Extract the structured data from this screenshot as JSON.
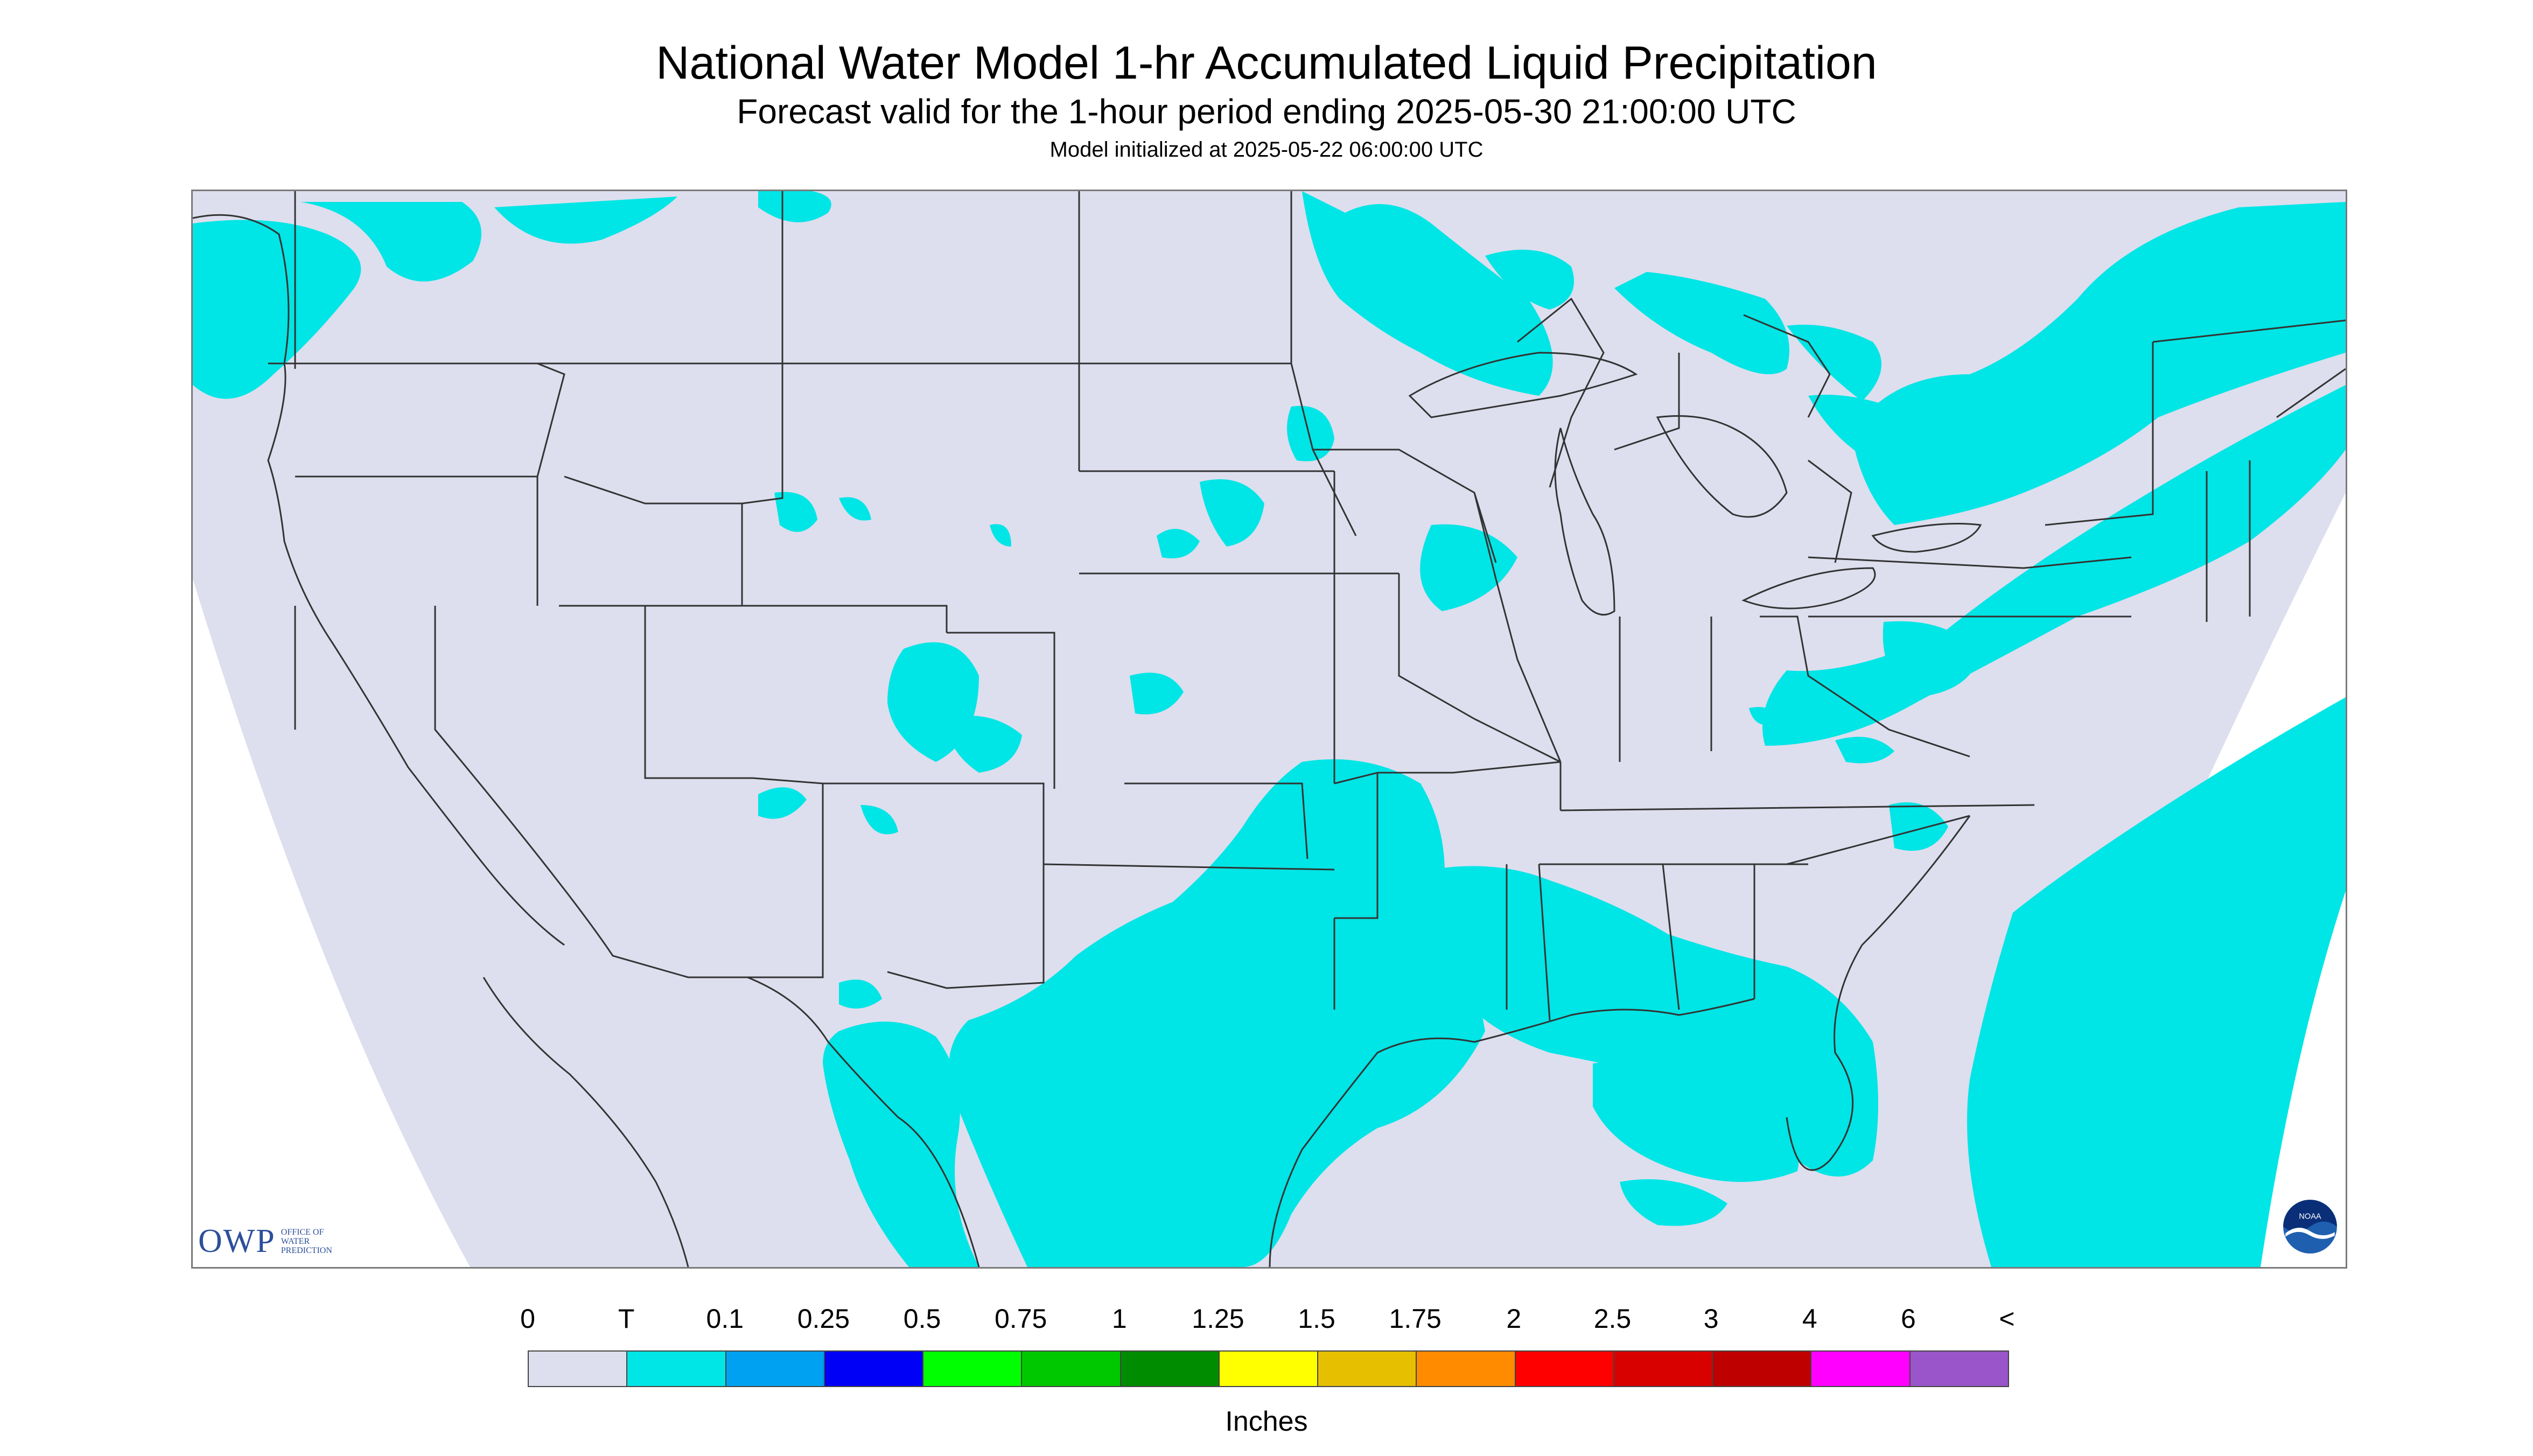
{
  "header": {
    "title": "National Water Model 1-hr Accumulated Liquid Precipitation",
    "subtitle": "Forecast valid for the 1-hour period ending 2025-05-30 21:00:00 UTC",
    "init": "Model initialized at 2025-05-22 06:00:00 UTC"
  },
  "map": {
    "region": "Contiguous United States",
    "colors": {
      "background": "#ffffff",
      "no_precip": "#dddeee",
      "trace": "#00e5e5",
      "boundary_line": "#333333"
    }
  },
  "logos": {
    "owp_mark": "OWP",
    "owp_text": [
      "OFFICE OF",
      "WATER",
      "PREDICTION"
    ],
    "noaa_text": "NOAA"
  },
  "legend": {
    "tick_labels": [
      "0",
      "T",
      "0.1",
      "0.25",
      "0.5",
      "0.75",
      "1",
      "1.25",
      "1.5",
      "1.75",
      "2",
      "2.5",
      "3",
      "4",
      "6",
      "<"
    ],
    "colors": [
      "#dddeee",
      "#00e5e5",
      "#00a1f0",
      "#0000f6",
      "#00ff00",
      "#00c800",
      "#008c00",
      "#ffff00",
      "#e6bf00",
      "#ff8c00",
      "#ff0000",
      "#d90000",
      "#bf0000",
      "#ff00ff",
      "#9955c9"
    ],
    "units": "Inches"
  }
}
